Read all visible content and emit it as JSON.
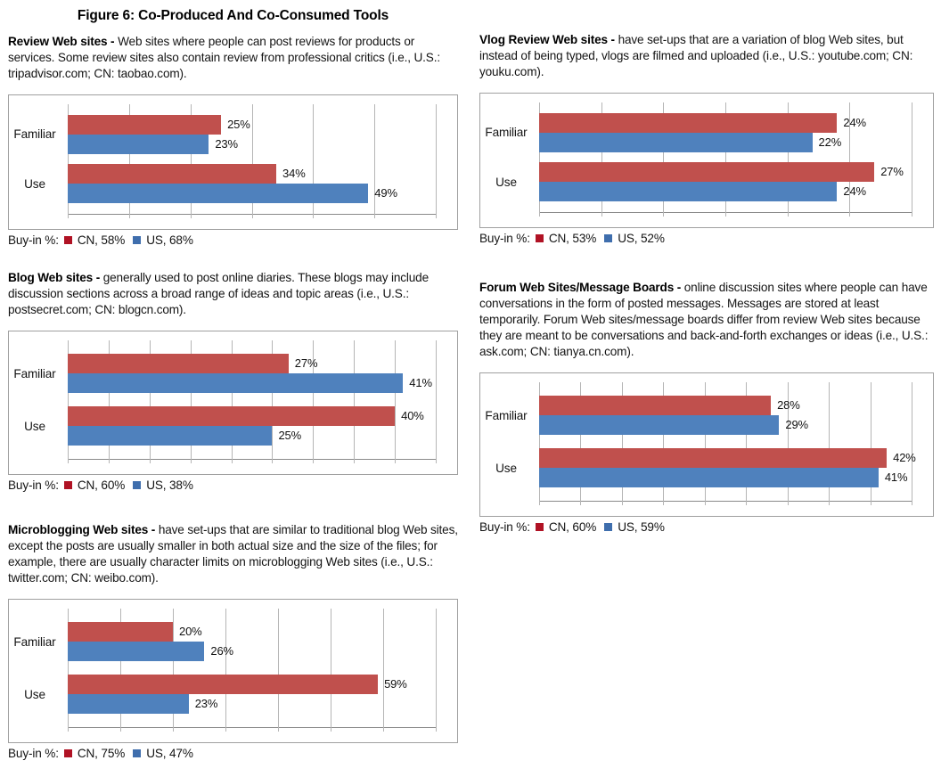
{
  "figure_title": "Figure 6: Co-Produced And Co-Consumed Tools",
  "colors": {
    "cn_bar": "#C0504D",
    "us_bar": "#4F81BD",
    "cn_legend_swatch": "#B01224",
    "us_legend_swatch": "#3F6EAD",
    "gridline": "#B5B5B5",
    "box_border": "#A0A0A0",
    "axis_line": "#8A8A8A"
  },
  "sections": [
    {
      "id": "review-web-sites",
      "lead": "Review Web sites -",
      "body": "Web sites where people can post reviews for products or services. Some review sites also contain review from professional critics (i.e., U.S.: tripadvisor.com; CN: taobao.com).",
      "buyin": {
        "label": "Buy-in %:",
        "cn": "CN, 58%",
        "us": "US, 68%"
      }
    },
    {
      "id": "vlog-review-web-sites",
      "lead": "Vlog Review Web sites -",
      "body": "have set-ups that are a variation of blog Web sites, but instead of being typed, vlogs are filmed and uploaded (i.e., U.S.: youtube.com; CN: youku.com).",
      "buyin": {
        "label": "Buy-in %:",
        "cn": "CN, 53%",
        "us": "US, 52%"
      }
    },
    {
      "id": "blog-web-sites",
      "lead": "Blog Web sites -",
      "body": "generally used to post online diaries. These blogs may include discussion sections across a broad range of ideas and topic areas (i.e., U.S.: postsecret.com; CN: blogcn.com).",
      "buyin": {
        "label": "Buy-in %:",
        "cn": "CN, 60%",
        "us": "US, 38%"
      }
    },
    {
      "id": "forum-web-sites-message-boards",
      "lead": "Forum Web Sites/Message Boards -",
      "body": "online discussion sites where people can have conversations in the form of posted messages. Messages are stored at least temporarily. Forum Web sites/message boards differ from review Web sites because they are meant to be conversations and back-and-forth exchanges or ideas (i.e., U.S.: ask.com; CN: tianya.cn.com).",
      "buyin": {
        "label": "Buy-in %:",
        "cn": "CN, 60%",
        "us": "US, 59%"
      }
    },
    {
      "id": "microblogging-web-sites",
      "lead": "Microblogging Web sites -",
      "body": "have set-ups that are similar to traditional blog Web sites, except the posts are usually smaller in both actual size and the size of the files; for example, there are usually character limits on microblogging Web sites (i.e., U.S.: twitter.com; CN: weibo.com).",
      "buyin": {
        "label": "Buy-in %:",
        "cn": "CN, 75%",
        "us": "US, 47%"
      }
    }
  ],
  "chart_data": [
    {
      "type": "bar",
      "orientation": "horizontal",
      "title": "Review Web sites",
      "categories": [
        "Familiar",
        "Use"
      ],
      "series": [
        {
          "name": "CN",
          "values": [
            25,
            34
          ],
          "color": "#C0504D"
        },
        {
          "name": "US",
          "values": [
            23,
            49
          ],
          "color": "#4F81BD"
        }
      ],
      "xlim": [
        0,
        60
      ],
      "grid_step": 10,
      "value_suffix": "%",
      "grid": true,
      "legend_position": "below",
      "buy_in_pct": {
        "CN": 58,
        "US": 68
      }
    },
    {
      "type": "bar",
      "orientation": "horizontal",
      "title": "Vlog Review Web sites",
      "categories": [
        "Familiar",
        "Use"
      ],
      "series": [
        {
          "name": "CN",
          "values": [
            24,
            27
          ],
          "color": "#C0504D"
        },
        {
          "name": "US",
          "values": [
            22,
            24
          ],
          "color": "#4F81BD"
        }
      ],
      "xlim": [
        0,
        30
      ],
      "grid_step": 5,
      "value_suffix": "%",
      "grid": true,
      "legend_position": "below",
      "buy_in_pct": {
        "CN": 53,
        "US": 52
      }
    },
    {
      "type": "bar",
      "orientation": "horizontal",
      "title": "Blog Web sites",
      "categories": [
        "Familiar",
        "Use"
      ],
      "series": [
        {
          "name": "CN",
          "values": [
            27,
            40
          ],
          "color": "#C0504D"
        },
        {
          "name": "US",
          "values": [
            41,
            25
          ],
          "color": "#4F81BD"
        }
      ],
      "xlim": [
        0,
        45
      ],
      "grid_step": 5,
      "value_suffix": "%",
      "grid": true,
      "legend_position": "below",
      "buy_in_pct": {
        "CN": 60,
        "US": 38
      }
    },
    {
      "type": "bar",
      "orientation": "horizontal",
      "title": "Forum Web Sites/Message Boards",
      "categories": [
        "Familiar",
        "Use"
      ],
      "series": [
        {
          "name": "CN",
          "values": [
            28,
            42
          ],
          "color": "#C0504D"
        },
        {
          "name": "US",
          "values": [
            29,
            41
          ],
          "color": "#4F81BD"
        }
      ],
      "xlim": [
        0,
        45
      ],
      "grid_step": 5,
      "value_suffix": "%",
      "grid": true,
      "legend_position": "below",
      "buy_in_pct": {
        "CN": 60,
        "US": 59
      }
    },
    {
      "type": "bar",
      "orientation": "horizontal",
      "title": "Microblogging Web sites",
      "categories": [
        "Familiar",
        "Use"
      ],
      "series": [
        {
          "name": "CN",
          "values": [
            20,
            59
          ],
          "color": "#C0504D"
        },
        {
          "name": "US",
          "values": [
            26,
            23
          ],
          "color": "#4F81BD"
        }
      ],
      "xlim": [
        0,
        70
      ],
      "grid_step": 10,
      "value_suffix": "%",
      "grid": true,
      "legend_position": "below",
      "buy_in_pct": {
        "CN": 75,
        "US": 47
      }
    }
  ]
}
